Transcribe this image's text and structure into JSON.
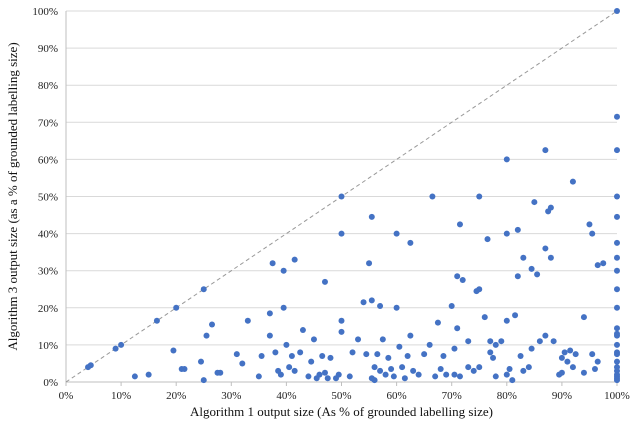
{
  "chart_data": {
    "type": "scatter",
    "xlabel": "Algorithm 1 output size (As % of grounded labelling size)",
    "ylabel": "Algorithm 3 output size (as a % of grounded labelling size)",
    "xlim": [
      0,
      100
    ],
    "ylim": [
      0,
      100
    ],
    "xticks": [
      "0%",
      "10%",
      "20%",
      "30%",
      "40%",
      "50%",
      "60%",
      "70%",
      "80%",
      "90%",
      "100%"
    ],
    "yticks": [
      "0%",
      "10%",
      "20%",
      "30%",
      "40%",
      "50%",
      "60%",
      "70%",
      "80%",
      "90%",
      "100%"
    ],
    "grid": true,
    "reference_line": "y = x",
    "colors": {
      "points": "#4472C4",
      "grid": "#d9d9d9",
      "reference": "#999999"
    },
    "points": [
      [
        4,
        4
      ],
      [
        4.5,
        4.5
      ],
      [
        9,
        9
      ],
      [
        10,
        10
      ],
      [
        12.5,
        1.5
      ],
      [
        15,
        2
      ],
      [
        16.5,
        16.5
      ],
      [
        20,
        20
      ],
      [
        19.5,
        8.5
      ],
      [
        21,
        3.5
      ],
      [
        21.5,
        3.5
      ],
      [
        24.5,
        5.5
      ],
      [
        25,
        25
      ],
      [
        25,
        0.5
      ],
      [
        25.5,
        12.5
      ],
      [
        26.5,
        15.5
      ],
      [
        27.5,
        2.5
      ],
      [
        28,
        2.5
      ],
      [
        31,
        7.5
      ],
      [
        32,
        5
      ],
      [
        33,
        16.5
      ],
      [
        35,
        1.5
      ],
      [
        35.5,
        7
      ],
      [
        37,
        12.5
      ],
      [
        37,
        18.5
      ],
      [
        37.5,
        32
      ],
      [
        38,
        8
      ],
      [
        38.5,
        3
      ],
      [
        39,
        2
      ],
      [
        39.5,
        30
      ],
      [
        39.5,
        20
      ],
      [
        40,
        10
      ],
      [
        40.5,
        4
      ],
      [
        41,
        7
      ],
      [
        41.5,
        3
      ],
      [
        41.5,
        33
      ],
      [
        42.5,
        8
      ],
      [
        43,
        14
      ],
      [
        44,
        1.5
      ],
      [
        44.5,
        5.5
      ],
      [
        45,
        11.5
      ],
      [
        45.5,
        1
      ],
      [
        46,
        2
      ],
      [
        46.5,
        7
      ],
      [
        47,
        2.5
      ],
      [
        47,
        27
      ],
      [
        47.5,
        1
      ],
      [
        48,
        6.5
      ],
      [
        49,
        1
      ],
      [
        49.5,
        2
      ],
      [
        50,
        50
      ],
      [
        50,
        40
      ],
      [
        50,
        16.5
      ],
      [
        50,
        13.5
      ],
      [
        51.5,
        1.5
      ],
      [
        52,
        8
      ],
      [
        53,
        11.5
      ],
      [
        54,
        21.5
      ],
      [
        54.5,
        7.5
      ],
      [
        55,
        32
      ],
      [
        55.5,
        44.5
      ],
      [
        55.5,
        22
      ],
      [
        55.5,
        1
      ],
      [
        56,
        0.5
      ],
      [
        56,
        4
      ],
      [
        56.5,
        7.5
      ],
      [
        57,
        3
      ],
      [
        57,
        20.5
      ],
      [
        57.5,
        11.5
      ],
      [
        58,
        2
      ],
      [
        58.5,
        6.5
      ],
      [
        59,
        3.5
      ],
      [
        59.5,
        1.5
      ],
      [
        60,
        40
      ],
      [
        60,
        20
      ],
      [
        60.5,
        9.5
      ],
      [
        61,
        4
      ],
      [
        61.5,
        1
      ],
      [
        62,
        7
      ],
      [
        62.5,
        37.5
      ],
      [
        62.5,
        12.5
      ],
      [
        63,
        3
      ],
      [
        64,
        2
      ],
      [
        65,
        7.5
      ],
      [
        66,
        10
      ],
      [
        66.5,
        50
      ],
      [
        67,
        1.5
      ],
      [
        67.5,
        16
      ],
      [
        68,
        3.5
      ],
      [
        68.5,
        7
      ],
      [
        69,
        2
      ],
      [
        70,
        20.5
      ],
      [
        70.5,
        2
      ],
      [
        70.5,
        9
      ],
      [
        71,
        28.5
      ],
      [
        71,
        14.5
      ],
      [
        71.5,
        42.5
      ],
      [
        71.5,
        1.5
      ],
      [
        72,
        27.5
      ],
      [
        73,
        4
      ],
      [
        73,
        11
      ],
      [
        74,
        3
      ],
      [
        74.5,
        24.5
      ],
      [
        75,
        50
      ],
      [
        75,
        4
      ],
      [
        75,
        25
      ],
      [
        76,
        17.5
      ],
      [
        76.5,
        38.5
      ],
      [
        77,
        8
      ],
      [
        77,
        11
      ],
      [
        77.5,
        6.5
      ],
      [
        78,
        10
      ],
      [
        78,
        1.5
      ],
      [
        79,
        11
      ],
      [
        80,
        60
      ],
      [
        80,
        40
      ],
      [
        80,
        16.5
      ],
      [
        80,
        2
      ],
      [
        80.5,
        3.5
      ],
      [
        81,
        0.5
      ],
      [
        81.5,
        18
      ],
      [
        82,
        41
      ],
      [
        82,
        28.5
      ],
      [
        82.5,
        7
      ],
      [
        83,
        33.5
      ],
      [
        83,
        3
      ],
      [
        84,
        4
      ],
      [
        84.5,
        30.5
      ],
      [
        84.5,
        9
      ],
      [
        85,
        48.5
      ],
      [
        85.5,
        29
      ],
      [
        86,
        11
      ],
      [
        87,
        62.5
      ],
      [
        87,
        36
      ],
      [
        87,
        12.5
      ],
      [
        87.5,
        46
      ],
      [
        88,
        47
      ],
      [
        88,
        33.5
      ],
      [
        88.5,
        11
      ],
      [
        89.5,
        2
      ],
      [
        90,
        2.5
      ],
      [
        90,
        6.5
      ],
      [
        90.5,
        8
      ],
      [
        91,
        5.5
      ],
      [
        91.5,
        8.5
      ],
      [
        92,
        54
      ],
      [
        92,
        4
      ],
      [
        92.5,
        7.5
      ],
      [
        94,
        2.5
      ],
      [
        94,
        17.5
      ],
      [
        95,
        42.5
      ],
      [
        95.5,
        40
      ],
      [
        95.5,
        7.5
      ],
      [
        96,
        3.5
      ],
      [
        96.5,
        31.5
      ],
      [
        96.5,
        5.5
      ],
      [
        97.5,
        32
      ],
      [
        100,
        100
      ],
      [
        100,
        71.5
      ],
      [
        100,
        62.5
      ],
      [
        100,
        50
      ],
      [
        100,
        44.5
      ],
      [
        100,
        37.5
      ],
      [
        100,
        33.5
      ],
      [
        100,
        30
      ],
      [
        100,
        25
      ],
      [
        100,
        20
      ],
      [
        100,
        14.5
      ],
      [
        100,
        13
      ],
      [
        100,
        12.5
      ],
      [
        100,
        10
      ],
      [
        100,
        8
      ],
      [
        100,
        7.5
      ],
      [
        100,
        5.5
      ],
      [
        100,
        4
      ],
      [
        100,
        3
      ],
      [
        100,
        2
      ],
      [
        100,
        1.5
      ],
      [
        100,
        1
      ],
      [
        100,
        0.5
      ]
    ]
  }
}
